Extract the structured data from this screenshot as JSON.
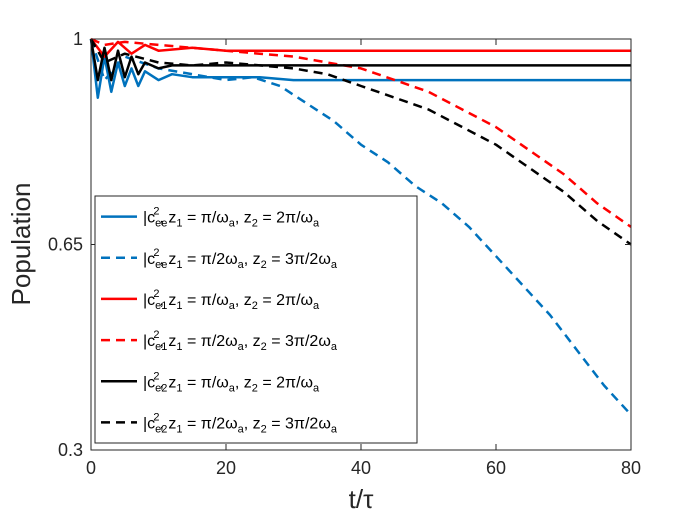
{
  "chart_data": {
    "type": "line",
    "title": "",
    "xlabel": "t/τ",
    "ylabel": "Population",
    "xlim": [
      0,
      80
    ],
    "ylim": [
      0.3,
      1.0
    ],
    "xticks": [
      0,
      20,
      40,
      60,
      80
    ],
    "yticks": [
      0.3,
      0.65,
      1
    ],
    "xtick_labels": [
      "0",
      "20",
      "40",
      "60",
      "80"
    ],
    "ytick_labels": [
      "0.3",
      "0.65",
      "1"
    ],
    "grid": false,
    "legend_position": "left",
    "colors": {
      "blue": "#0072BD",
      "red": "#FF0000",
      "black": "#000000"
    },
    "series": [
      {
        "name": "|c_ee|^2, z_1 = π/ω_a, z_2 = 2π/ω_a",
        "label": {
          "base": "|c",
          "sub": "ee",
          "sup": "2",
          "rest": ", z",
          "z1sub": "1",
          "z1val": " = π/ω",
          "z1w": "a",
          "z2pre": ", z",
          "z2sub": "2",
          "z2val": " = 2π/ω",
          "z2w": "a"
        },
        "color": "#0072BD",
        "dash": "solid",
        "x": [
          0,
          1,
          2,
          3,
          4,
          5,
          6,
          7,
          8,
          10,
          12,
          15,
          20,
          25,
          30,
          40,
          50,
          60,
          70,
          80
        ],
        "y": [
          1.0,
          0.9,
          0.97,
          0.91,
          0.96,
          0.92,
          0.95,
          0.92,
          0.945,
          0.93,
          0.94,
          0.935,
          0.935,
          0.935,
          0.93,
          0.93,
          0.93,
          0.93,
          0.93,
          0.93
        ]
      },
      {
        "name": "|c_ee|^2, z_1 = π/2ω_a, z_2 = 3π/2ω_a",
        "label": {
          "base": "|c",
          "sub": "ee",
          "sup": "2",
          "rest": ", z",
          "z1sub": "1",
          "z1val": " = π/2ω",
          "z1w": "a",
          "z2pre": ", z",
          "z2sub": "2",
          "z2val": " = 3π/2ω",
          "z2w": "a"
        },
        "color": "#0072BD",
        "dash": "dashed",
        "x": [
          0,
          2,
          5,
          10,
          15,
          20,
          24,
          28,
          32,
          36,
          40,
          44,
          48,
          52,
          56,
          60,
          64,
          68,
          72,
          76,
          80
        ],
        "y": [
          1.0,
          0.93,
          0.97,
          0.95,
          0.94,
          0.93,
          0.935,
          0.92,
          0.89,
          0.86,
          0.82,
          0.79,
          0.75,
          0.72,
          0.68,
          0.63,
          0.58,
          0.53,
          0.47,
          0.41,
          0.36
        ]
      },
      {
        "name": "|c_e1|^2, z_1 = π/ω_a, z_2 = 2π/ω_a",
        "label": {
          "base": "|c",
          "sub": "e1",
          "sup": "2",
          "rest": ", z",
          "z1sub": "1",
          "z1val": " = π/ω",
          "z1w": "a",
          "z2pre": ", z",
          "z2sub": "2",
          "z2val": " = 2π/ω",
          "z2w": "a"
        },
        "color": "#FF0000",
        "dash": "solid",
        "x": [
          0,
          2,
          4,
          6,
          8,
          10,
          15,
          20,
          30,
          40,
          50,
          60,
          70,
          80
        ],
        "y": [
          1.0,
          0.97,
          0.995,
          0.975,
          0.99,
          0.98,
          0.985,
          0.98,
          0.98,
          0.98,
          0.98,
          0.98,
          0.98,
          0.98
        ]
      },
      {
        "name": "|c_e1|^2, z_1 = π/2ω_a, z_2 = 3π/2ω_a",
        "label": {
          "base": "|c",
          "sub": "e1",
          "sup": "2",
          "rest": ", z",
          "z1sub": "1",
          "z1val": " = π/2ω",
          "z1w": "a",
          "z2pre": ", z",
          "z2sub": "2",
          "z2val": " = 3π/2ω",
          "z2w": "a"
        },
        "color": "#FF0000",
        "dash": "dashed",
        "x": [
          0,
          2,
          5,
          10,
          15,
          20,
          25,
          30,
          35,
          40,
          45,
          50,
          55,
          60,
          65,
          70,
          75,
          80
        ],
        "y": [
          1.0,
          0.99,
          0.995,
          0.99,
          0.985,
          0.98,
          0.975,
          0.97,
          0.96,
          0.95,
          0.93,
          0.91,
          0.88,
          0.85,
          0.81,
          0.77,
          0.72,
          0.68
        ]
      },
      {
        "name": "|c_e2|^2, z_1 = π/ω_a, z_2 = 2π/ω_a",
        "label": {
          "base": "|c",
          "sub": "e2",
          "sup": "2",
          "rest": ", z",
          "z1sub": "1",
          "z1val": " = π/ω",
          "z1w": "a",
          "z2pre": ", z",
          "z2sub": "2",
          "z2val": " = 2π/ω",
          "z2w": "a"
        },
        "color": "#000000",
        "dash": "solid",
        "x": [
          0,
          1,
          2,
          3,
          4,
          5,
          6,
          7,
          8,
          10,
          12,
          15,
          20,
          30,
          40,
          50,
          60,
          70,
          80
        ],
        "y": [
          1.0,
          0.93,
          0.985,
          0.93,
          0.98,
          0.935,
          0.97,
          0.94,
          0.96,
          0.95,
          0.955,
          0.955,
          0.955,
          0.955,
          0.955,
          0.955,
          0.955,
          0.955,
          0.955
        ]
      },
      {
        "name": "|c_e2|^2, z_1 = π/2ω_a, z_2 = 3π/2ω_a",
        "label": {
          "base": "|c",
          "sub": "e2",
          "sup": "2",
          "rest": ", z",
          "z1sub": "1",
          "z1val": " = π/2ω",
          "z1w": "a",
          "z2pre": ", z",
          "z2sub": "2",
          "z2val": " = 3π/2ω",
          "z2w": "a"
        },
        "color": "#000000",
        "dash": "dashed",
        "x": [
          0,
          2,
          5,
          10,
          15,
          20,
          25,
          30,
          35,
          40,
          45,
          50,
          55,
          60,
          65,
          70,
          75,
          80
        ],
        "y": [
          1.0,
          0.96,
          0.975,
          0.96,
          0.955,
          0.96,
          0.955,
          0.95,
          0.94,
          0.92,
          0.9,
          0.88,
          0.85,
          0.82,
          0.78,
          0.74,
          0.69,
          0.65
        ]
      }
    ]
  }
}
